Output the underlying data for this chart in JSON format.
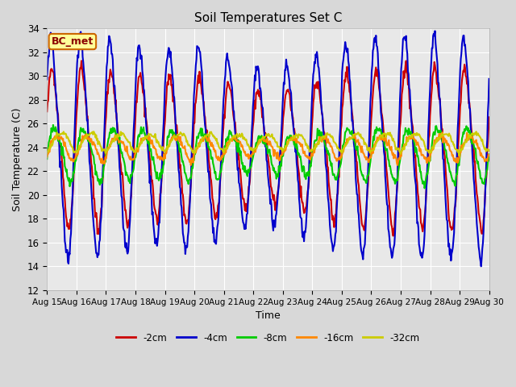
{
  "title": "Soil Temperatures Set C",
  "xlabel": "Time",
  "ylabel": "Soil Temperature (C)",
  "ylim": [
    12,
    34
  ],
  "yticks": [
    12,
    14,
    16,
    18,
    20,
    22,
    24,
    26,
    28,
    30,
    32,
    34
  ],
  "xtick_labels": [
    "Aug 15",
    "Aug 16",
    "Aug 17",
    "Aug 18",
    "Aug 19",
    "Aug 20",
    "Aug 21",
    "Aug 22",
    "Aug 23",
    "Aug 24",
    "Aug 25",
    "Aug 26",
    "Aug 27",
    "Aug 28",
    "Aug 29",
    "Aug 30"
  ],
  "annotation_text": "BC_met",
  "annotation_bg": "#ffff99",
  "annotation_border": "#cc6600",
  "colors": {
    "-2cm": "#cc0000",
    "-4cm": "#0000cc",
    "-8cm": "#00cc00",
    "-16cm": "#ff8800",
    "-32cm": "#cccc00"
  },
  "line_width": 1.5,
  "fig_bg": "#d8d8d8",
  "plot_bg": "#e8e8e8",
  "grid_color": "#ffffff",
  "legend_order": [
    "-2cm",
    "-4cm",
    "-8cm",
    "-16cm",
    "-32cm"
  ]
}
